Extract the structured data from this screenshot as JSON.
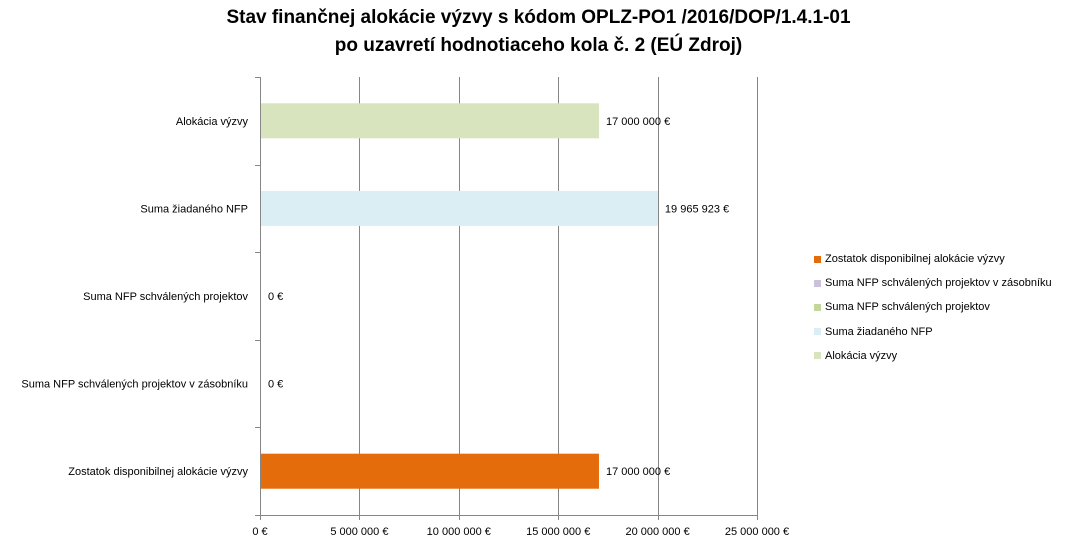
{
  "chart_data": {
    "type": "bar",
    "orientation": "horizontal",
    "title_lines": [
      "Stav finančnej alokácie výzvy s kódom OPLZ-PO1 /2016/DOP/1.4.1-01",
      "po uzavretí hodnotiaceho kola č. 2 (EÚ Zdroj)"
    ],
    "categories": [
      "Alokácia výzvy",
      "Suma žiadaného NFP",
      "Suma NFP schválených projektov",
      "Suma NFP schválených projektov v zásobníku",
      "Zostatok disponibilnej alokácie výzvy"
    ],
    "values": [
      17000000,
      19965923,
      0,
      0,
      17000000
    ],
    "value_labels": [
      "17 000 000 €",
      "19 965 923 €",
      "0 €",
      "0 €",
      "17 000 000 €"
    ],
    "colors": [
      "#d7e4bd",
      "#dbeef4",
      "#c3d69b",
      "#ccc1da",
      "#e46c0a"
    ],
    "xlim": [
      0,
      25000000
    ],
    "x_ticks": [
      0,
      5000000,
      10000000,
      15000000,
      20000000,
      25000000
    ],
    "x_tick_labels": [
      "0 €",
      "5 000 000 €",
      "10 000 000 €",
      "15 000 000 €",
      "20 000 000 €",
      "25 000 000 €"
    ],
    "grid": "vertical",
    "legend_position": "right",
    "legend": [
      {
        "label": "Zostatok disponibilnej alokácie výzvy",
        "color": "#e46c0a"
      },
      {
        "label": "Suma NFP schválených projektov v zásobníku",
        "color": "#ccc1da"
      },
      {
        "label": "Suma NFP schválených projektov",
        "color": "#c3d69b"
      },
      {
        "label": "Suma žiadaného NFP",
        "color": "#dbeef4"
      },
      {
        "label": "Alokácia výzvy",
        "color": "#d7e4bd"
      }
    ]
  }
}
